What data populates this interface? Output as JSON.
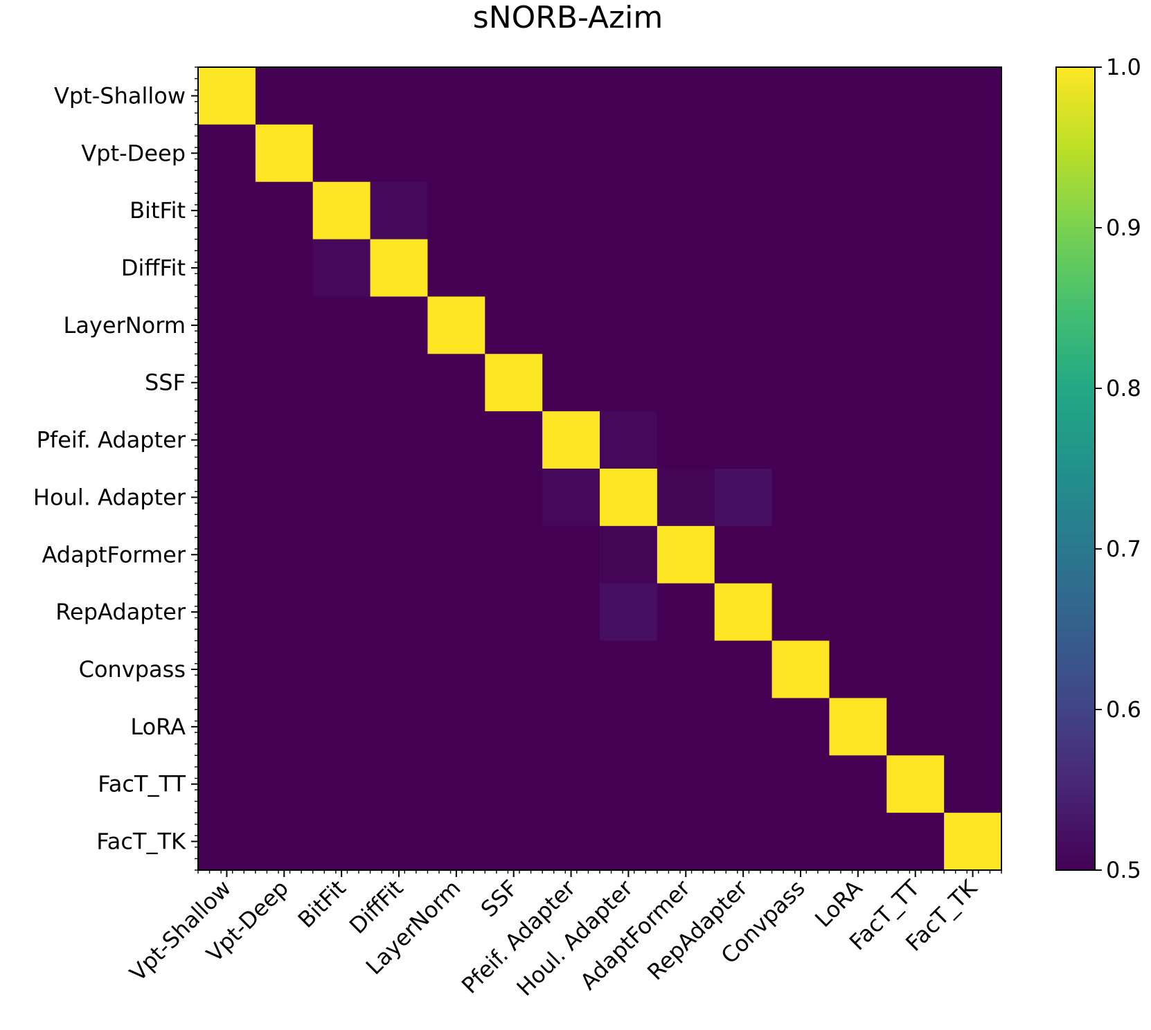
{
  "chart_data": {
    "type": "heatmap",
    "title": "sNORB-Azim",
    "xlabel": "",
    "ylabel": "",
    "rows": [
      "Vpt-Shallow",
      "Vpt-Deep",
      "BitFit",
      "DiffFit",
      "LayerNorm",
      "SSF",
      "Pfeif. Adapter",
      "Houl. Adapter",
      "AdaptFormer",
      "RepAdapter",
      "Convpass",
      "LoRA",
      "FacT_TT",
      "FacT_TK"
    ],
    "columns": [
      "Vpt-Shallow",
      "Vpt-Deep",
      "BitFit",
      "DiffFit",
      "LayerNorm",
      "SSF",
      "Pfeif. Adapter",
      "Houl. Adapter",
      "AdaptFormer",
      "RepAdapter",
      "Convpass",
      "LoRA",
      "FacT_TT",
      "FacT_TK"
    ],
    "values": [
      [
        1.0,
        0.5,
        0.5,
        0.5,
        0.5,
        0.5,
        0.5,
        0.5,
        0.5,
        0.5,
        0.5,
        0.5,
        0.5,
        0.5
      ],
      [
        0.5,
        1.0,
        0.5,
        0.5,
        0.5,
        0.5,
        0.5,
        0.5,
        0.5,
        0.5,
        0.5,
        0.5,
        0.5,
        0.5
      ],
      [
        0.5,
        0.5,
        1.0,
        0.51,
        0.5,
        0.5,
        0.5,
        0.5,
        0.5,
        0.5,
        0.5,
        0.5,
        0.5,
        0.5
      ],
      [
        0.5,
        0.5,
        0.51,
        1.0,
        0.5,
        0.5,
        0.5,
        0.5,
        0.5,
        0.5,
        0.5,
        0.5,
        0.5,
        0.5
      ],
      [
        0.5,
        0.5,
        0.5,
        0.5,
        1.0,
        0.5,
        0.5,
        0.5,
        0.5,
        0.5,
        0.5,
        0.5,
        0.5,
        0.5
      ],
      [
        0.5,
        0.5,
        0.5,
        0.5,
        0.5,
        1.0,
        0.5,
        0.5,
        0.5,
        0.5,
        0.5,
        0.5,
        0.5,
        0.5
      ],
      [
        0.5,
        0.5,
        0.5,
        0.5,
        0.5,
        0.5,
        1.0,
        0.51,
        0.5,
        0.5,
        0.5,
        0.5,
        0.5,
        0.5
      ],
      [
        0.5,
        0.5,
        0.5,
        0.5,
        0.5,
        0.5,
        0.51,
        1.0,
        0.505,
        0.52,
        0.5,
        0.5,
        0.5,
        0.5
      ],
      [
        0.5,
        0.5,
        0.5,
        0.5,
        0.5,
        0.5,
        0.5,
        0.505,
        1.0,
        0.5,
        0.5,
        0.5,
        0.5,
        0.5
      ],
      [
        0.5,
        0.5,
        0.5,
        0.5,
        0.5,
        0.5,
        0.5,
        0.52,
        0.5,
        1.0,
        0.5,
        0.5,
        0.5,
        0.5
      ],
      [
        0.5,
        0.5,
        0.5,
        0.5,
        0.5,
        0.5,
        0.5,
        0.5,
        0.5,
        0.5,
        1.0,
        0.5,
        0.5,
        0.5
      ],
      [
        0.5,
        0.5,
        0.5,
        0.5,
        0.5,
        0.5,
        0.5,
        0.5,
        0.5,
        0.5,
        0.5,
        1.0,
        0.5,
        0.5
      ],
      [
        0.5,
        0.5,
        0.5,
        0.5,
        0.5,
        0.5,
        0.5,
        0.5,
        0.5,
        0.5,
        0.5,
        0.5,
        1.0,
        0.5
      ],
      [
        0.5,
        0.5,
        0.5,
        0.5,
        0.5,
        0.5,
        0.5,
        0.5,
        0.5,
        0.5,
        0.5,
        0.5,
        0.5,
        1.0
      ]
    ],
    "colormap": "viridis",
    "colorbar": {
      "range": [
        0.5,
        1.0
      ],
      "ticks": [
        0.5,
        0.6,
        0.7,
        0.8,
        0.9,
        1.0
      ],
      "tick_labels": [
        "0.5",
        "0.6",
        "0.7",
        "0.8",
        "0.9",
        "1.0"
      ]
    },
    "grid": false,
    "legend": "colorbar-right"
  }
}
